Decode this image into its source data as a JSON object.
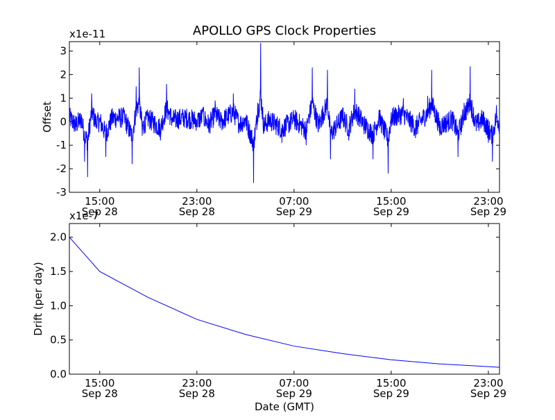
{
  "chart_data": [
    {
      "type": "line",
      "title": "APOLLO GPS Clock Properties",
      "xlabel": "",
      "ylabel": "Offset",
      "y_exponent_label": "x1e-11",
      "ylim": [
        -3,
        3.4
      ],
      "y_ticks": [
        -3,
        -2,
        -1,
        0,
        1,
        2,
        3
      ],
      "y_tick_labels": [
        "-3",
        "-2",
        "-1",
        "0",
        "1",
        "2",
        "3"
      ],
      "x_ticks": [
        {
          "time": "15:00",
          "date": "Sep 28"
        },
        {
          "time": "23:00",
          "date": "Sep 28"
        },
        {
          "time": "07:00",
          "date": "Sep 29"
        },
        {
          "time": "15:00",
          "date": "Sep 29"
        },
        {
          "time": "23:00",
          "date": "Sep 29"
        }
      ],
      "xlim": [
        "Sep 28 12:30",
        "Sep 29 23:55"
      ],
      "grid": false,
      "series": [
        {
          "color": "#0000ff",
          "points": [
            [
              "Sep 28 12:30",
              0.5
            ],
            [
              "Sep 28 13:00",
              -0.4
            ],
            [
              "Sep 28 13:30",
              0.3
            ],
            [
              "Sep 28 13:45",
              -1.7
            ],
            [
              "Sep 28 14:00",
              -2.35
            ],
            [
              "Sep 28 14:20",
              1.2
            ],
            [
              "Sep 28 14:45",
              -0.3
            ],
            [
              "Sep 28 15:00",
              0.1
            ],
            [
              "Sep 28 15:30",
              -1.5
            ],
            [
              "Sep 28 16:00",
              0.4
            ],
            [
              "Sep 28 17:00",
              0.5
            ],
            [
              "Sep 28 17:40",
              -1.8
            ],
            [
              "Sep 28 18:00",
              1.5
            ],
            [
              "Sep 28 18:15",
              2.3
            ],
            [
              "Sep 28 18:30",
              -0.6
            ],
            [
              "Sep 28 19:00",
              0.4
            ],
            [
              "Sep 28 20:00",
              -0.8
            ],
            [
              "Sep 28 20:30",
              1.6
            ],
            [
              "Sep 28 21:00",
              0.2
            ],
            [
              "Sep 28 22:00",
              0.5
            ],
            [
              "Sep 28 23:00",
              0.1
            ],
            [
              "Sep 28 23:30",
              0.6
            ],
            [
              "Sep 29 00:00",
              -0.4
            ],
            [
              "Sep 29 00:30",
              0.9
            ],
            [
              "Sep 29 01:00",
              0.0
            ],
            [
              "Sep 29 02:00",
              1.2
            ],
            [
              "Sep 29 02:30",
              -0.3
            ],
            [
              "Sep 29 03:00",
              0.2
            ],
            [
              "Sep 29 03:40",
              -2.6
            ],
            [
              "Sep 29 04:00",
              0.8
            ],
            [
              "Sep 29 04:15",
              3.35
            ],
            [
              "Sep 29 04:30",
              -0.5
            ],
            [
              "Sep 29 05:00",
              0.2
            ],
            [
              "Sep 29 06:00",
              -0.9
            ],
            [
              "Sep 29 07:00",
              0.3
            ],
            [
              "Sep 29 08:00",
              -1.0
            ],
            [
              "Sep 29 08:30",
              2.3
            ],
            [
              "Sep 29 09:00",
              -0.4
            ],
            [
              "Sep 29 09:45",
              2.2
            ],
            [
              "Sep 29 10:00",
              -1.6
            ],
            [
              "Sep 29 11:00",
              0.6
            ],
            [
              "Sep 29 11:30",
              -0.8
            ],
            [
              "Sep 29 12:00",
              1.4
            ],
            [
              "Sep 29 12:45",
              -0.3
            ],
            [
              "Sep 29 13:30",
              -1.6
            ],
            [
              "Sep 29 14:00",
              0.5
            ],
            [
              "Sep 29 14:45",
              -2.2
            ],
            [
              "Sep 29 15:00",
              0.4
            ],
            [
              "Sep 29 16:00",
              1.0
            ],
            [
              "Sep 29 17:00",
              -0.7
            ],
            [
              "Sep 29 18:00",
              1.1
            ],
            [
              "Sep 29 18:20",
              2.2
            ],
            [
              "Sep 29 19:00",
              -0.6
            ],
            [
              "Sep 29 20:00",
              0.3
            ],
            [
              "Sep 29 20:30",
              -1.5
            ],
            [
              "Sep 29 21:00",
              0.8
            ],
            [
              "Sep 29 21:30",
              2.35
            ],
            [
              "Sep 29 22:00",
              -0.4
            ],
            [
              "Sep 29 22:30",
              0.3
            ],
            [
              "Sep 29 23:00",
              -0.9
            ],
            [
              "Sep 29 23:20",
              -1.7
            ],
            [
              "Sep 29 23:40",
              0.7
            ],
            [
              "Sep 29 23:55",
              -0.3
            ]
          ]
        }
      ]
    },
    {
      "type": "line",
      "title": "",
      "xlabel": "Date (GMT)",
      "ylabel": "Drift (per day)",
      "y_exponent_label": "x1e-7",
      "ylim": [
        0.0,
        2.2
      ],
      "y_ticks": [
        0.0,
        0.5,
        1.0,
        1.5,
        2.0
      ],
      "y_tick_labels": [
        "0.0",
        "0.5",
        "1.0",
        "1.5",
        "2.0"
      ],
      "x_ticks": [
        {
          "time": "15:00",
          "date": "Sep 28"
        },
        {
          "time": "23:00",
          "date": "Sep 28"
        },
        {
          "time": "07:00",
          "date": "Sep 29"
        },
        {
          "time": "15:00",
          "date": "Sep 29"
        },
        {
          "time": "23:00",
          "date": "Sep 29"
        }
      ],
      "xlim": [
        "Sep 28 12:30",
        "Sep 29 23:55"
      ],
      "grid": false,
      "series": [
        {
          "color": "#0000ff",
          "points": [
            [
              "Sep 28 12:30",
              2.0
            ],
            [
              "Sep 28 15:00",
              1.5
            ],
            [
              "Sep 28 19:00",
              1.12
            ],
            [
              "Sep 28 23:00",
              0.8
            ],
            [
              "Sep 29 03:00",
              0.58
            ],
            [
              "Sep 29 07:00",
              0.41
            ],
            [
              "Sep 29 11:00",
              0.3
            ],
            [
              "Sep 29 15:00",
              0.21
            ],
            [
              "Sep 29 19:00",
              0.15
            ],
            [
              "Sep 29 23:00",
              0.11
            ],
            [
              "Sep 29 23:55",
              0.1
            ]
          ]
        }
      ]
    }
  ]
}
